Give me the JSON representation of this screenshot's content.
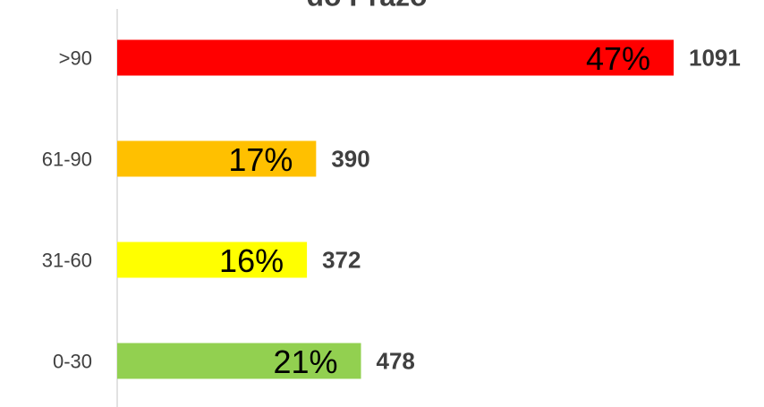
{
  "chart_data": {
    "type": "bar",
    "orientation": "horizontal",
    "title": "do Prazo",
    "categories": [
      ">90",
      "61-90",
      "31-60",
      "0-30"
    ],
    "values": [
      1091,
      390,
      372,
      478
    ],
    "colors": [
      "#ff0000",
      "#ffc000",
      "#ffff00",
      "#92d050"
    ],
    "shares": [
      47,
      17,
      16,
      21
    ],
    "share_labels": [
      "47%",
      "17%",
      "16%",
      "21%"
    ]
  }
}
